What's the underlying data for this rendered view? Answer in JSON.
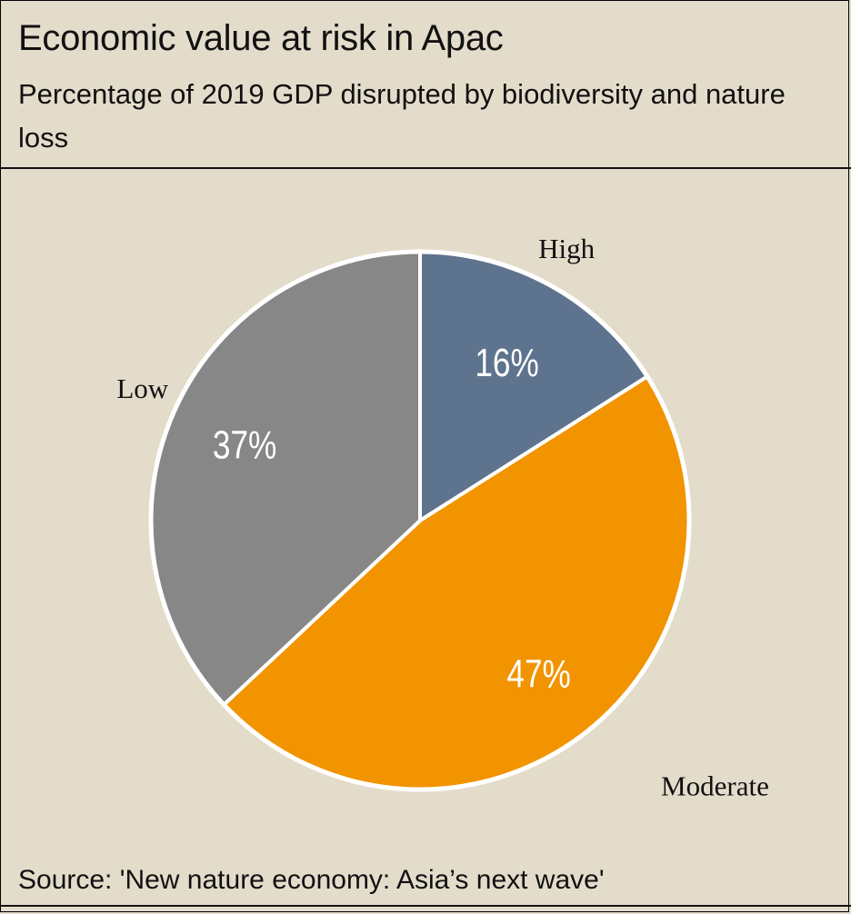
{
  "header": {
    "title": "Economic value at risk in Apac",
    "subtitle": "Percentage  of 2019 GDP disrupted by biodiversity and nature loss"
  },
  "footer": {
    "source": "Source: 'New nature economy: Asia’s next wave'"
  },
  "chart_data": {
    "type": "pie",
    "slices": [
      {
        "label": "High",
        "value": 16,
        "value_label": "16%",
        "color": "#5e738e"
      },
      {
        "label": "Moderate",
        "value": 47,
        "value_label": "47%",
        "color": "#f29300"
      },
      {
        "label": "Low",
        "value": 37,
        "value_label": "37%",
        "color": "#878787"
      }
    ],
    "start": "12 o'clock",
    "direction": "clockwise",
    "slice_border_color": "#ffffff",
    "legend": "none"
  }
}
